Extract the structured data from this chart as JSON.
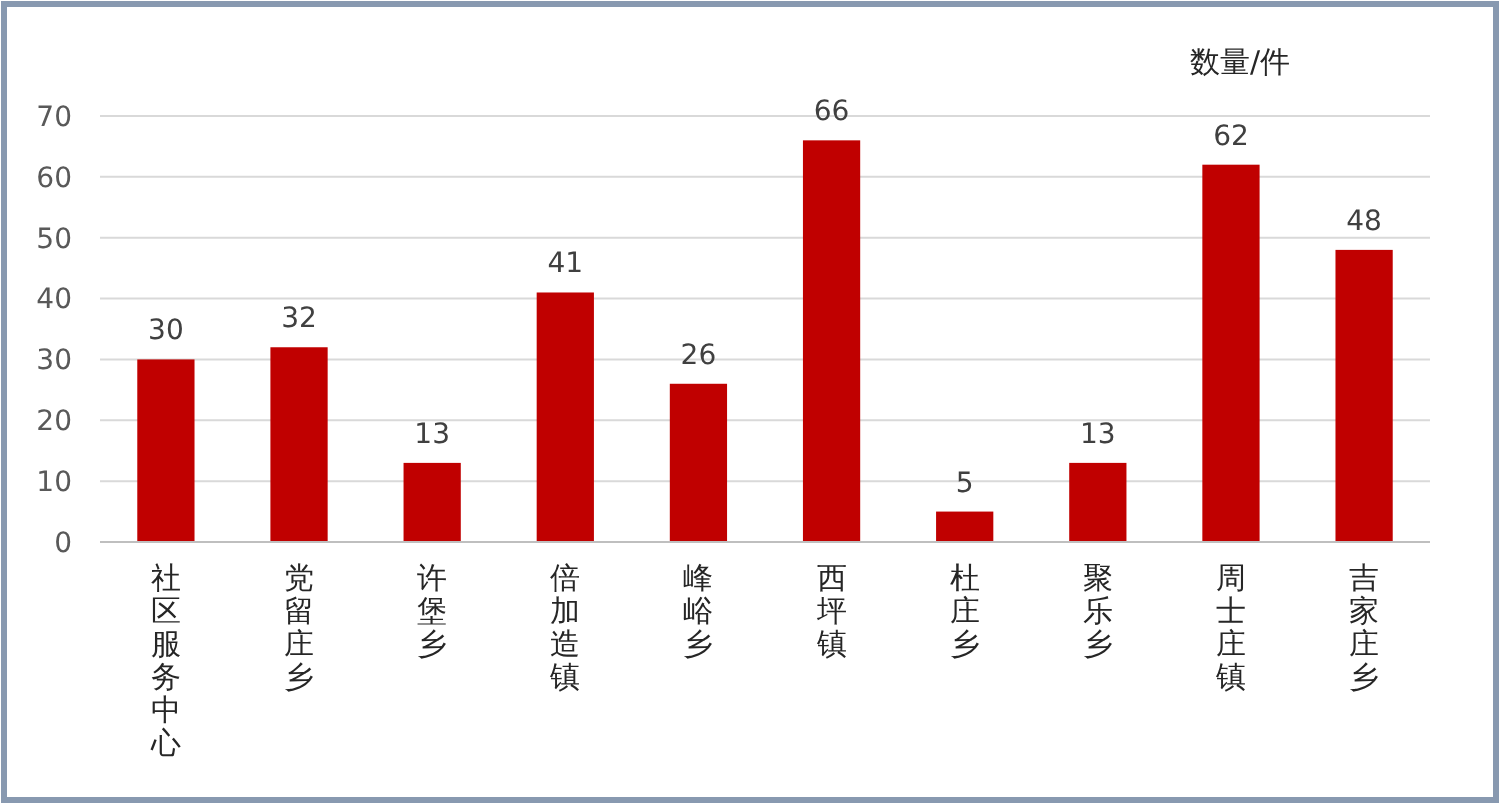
{
  "chart_data": {
    "type": "bar",
    "ylabel": "数量/件",
    "categories": [
      "社区服务中心",
      "党留庄乡",
      "许堡乡",
      "倍加造镇",
      "峰峪乡",
      "西坪镇",
      "杜庄乡",
      "聚乐乡",
      "周士庄镇",
      "吉家庄乡"
    ],
    "values": [
      30,
      32,
      13,
      41,
      26,
      66,
      5,
      13,
      62,
      48
    ],
    "color": "#c00000",
    "ylim": [
      0,
      70
    ],
    "yticks": [
      0,
      10,
      20,
      30,
      40,
      50,
      60,
      70
    ],
    "grid": "y",
    "data_labels": true
  }
}
